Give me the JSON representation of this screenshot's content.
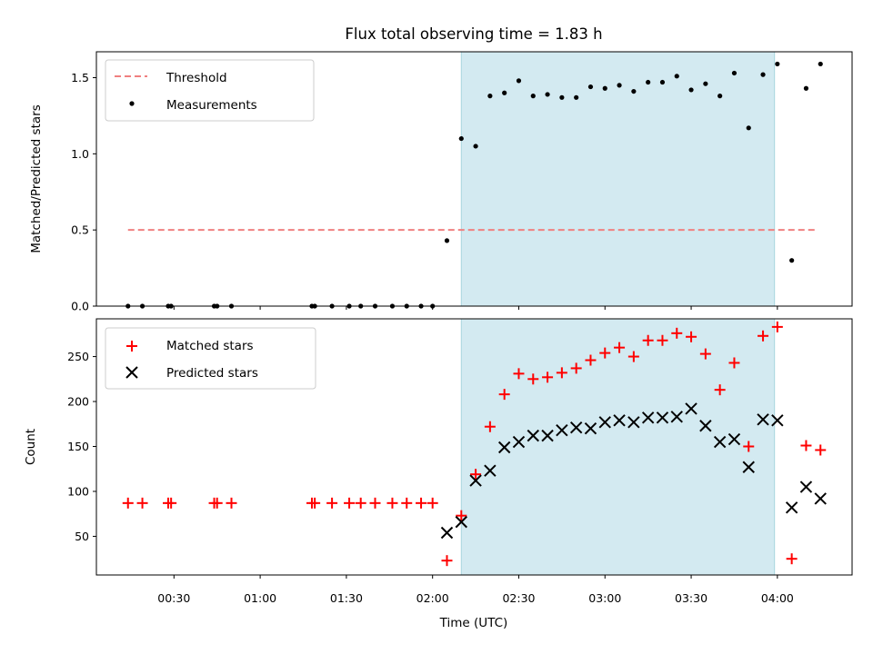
{
  "chart_data": [
    {
      "type": "scatter",
      "title": "Flux total observing time = 1.83 h",
      "xlabel": "",
      "ylabel": "Matched/Predicted stars",
      "xlim": [
        "00:03",
        "04:26"
      ],
      "ylim": [
        0,
        1.67
      ],
      "yticks": [
        0.0,
        0.5,
        1.0,
        1.5
      ],
      "ytick_labels": [
        "0.0",
        "0.5",
        "1.0",
        "1.5"
      ],
      "grid": false,
      "legend_position": "top-left",
      "shaded_span": [
        "02:10",
        "03:59"
      ],
      "shade_color": "#d3eaf1",
      "series": [
        {
          "name": "Threshold",
          "style": "dashed-line",
          "color": "#f08080",
          "points": [
            [
              "00:14",
              0.5
            ],
            [
              "04:14",
              0.5
            ]
          ]
        },
        {
          "name": "Measurements",
          "style": "dot",
          "color": "#000000",
          "points": [
            [
              "00:14",
              0.0
            ],
            [
              "00:19",
              0.0
            ],
            [
              "00:28",
              0.0
            ],
            [
              "00:29",
              0.0
            ],
            [
              "00:44",
              0.0
            ],
            [
              "00:45",
              0.0
            ],
            [
              "00:50",
              0.0
            ],
            [
              "01:18",
              0.0
            ],
            [
              "01:19",
              0.0
            ],
            [
              "01:25",
              0.0
            ],
            [
              "01:31",
              0.0
            ],
            [
              "01:35",
              0.0
            ],
            [
              "01:40",
              0.0
            ],
            [
              "01:46",
              0.0
            ],
            [
              "01:51",
              0.0
            ],
            [
              "01:56",
              0.0
            ],
            [
              "02:00",
              0.0
            ],
            [
              "02:05",
              0.43
            ],
            [
              "02:10",
              1.1
            ],
            [
              "02:15",
              1.05
            ],
            [
              "02:20",
              1.38
            ],
            [
              "02:25",
              1.4
            ],
            [
              "02:30",
              1.48
            ],
            [
              "02:35",
              1.38
            ],
            [
              "02:40",
              1.39
            ],
            [
              "02:45",
              1.37
            ],
            [
              "02:50",
              1.37
            ],
            [
              "02:55",
              1.44
            ],
            [
              "03:00",
              1.43
            ],
            [
              "03:05",
              1.45
            ],
            [
              "03:10",
              1.41
            ],
            [
              "03:15",
              1.47
            ],
            [
              "03:20",
              1.47
            ],
            [
              "03:25",
              1.51
            ],
            [
              "03:30",
              1.42
            ],
            [
              "03:35",
              1.46
            ],
            [
              "03:40",
              1.38
            ],
            [
              "03:45",
              1.53
            ],
            [
              "03:50",
              1.17
            ],
            [
              "03:55",
              1.52
            ],
            [
              "04:00",
              1.59
            ],
            [
              "04:05",
              0.3
            ],
            [
              "04:10",
              1.43
            ],
            [
              "04:15",
              1.59
            ]
          ]
        }
      ]
    },
    {
      "type": "scatter",
      "title": "",
      "xlabel": "Time (UTC)",
      "ylabel": "Count",
      "xlim": [
        "00:03",
        "04:26"
      ],
      "ylim": [
        7,
        292
      ],
      "yticks": [
        50,
        100,
        150,
        200,
        250
      ],
      "ytick_labels": [
        "50",
        "100",
        "150",
        "200",
        "250"
      ],
      "xticks": [
        "00:30",
        "01:00",
        "01:30",
        "02:00",
        "02:30",
        "03:00",
        "03:30",
        "04:00"
      ],
      "xtick_labels": [
        "00:30",
        "01:00",
        "01:30",
        "02:00",
        "02:30",
        "03:00",
        "03:30",
        "04:00"
      ],
      "grid": false,
      "legend_position": "top-left",
      "shaded_span": [
        "02:10",
        "03:59"
      ],
      "shade_color": "#d3eaf1",
      "series": [
        {
          "name": "Matched stars",
          "style": "plus",
          "color": "#ff0000",
          "points": [
            [
              "00:14",
              87
            ],
            [
              "00:19",
              87
            ],
            [
              "00:28",
              87
            ],
            [
              "00:29",
              87
            ],
            [
              "00:44",
              87
            ],
            [
              "00:45",
              87
            ],
            [
              "00:50",
              87
            ],
            [
              "01:18",
              87
            ],
            [
              "01:19",
              87
            ],
            [
              "01:25",
              87
            ],
            [
              "01:31",
              87
            ],
            [
              "01:35",
              87
            ],
            [
              "01:40",
              87
            ],
            [
              "01:46",
              87
            ],
            [
              "01:51",
              87
            ],
            [
              "01:56",
              87
            ],
            [
              "02:00",
              87
            ],
            [
              "02:05",
              23
            ],
            [
              "02:10",
              73
            ],
            [
              "02:15",
              119
            ],
            [
              "02:20",
              172
            ],
            [
              "02:25",
              208
            ],
            [
              "02:30",
              231
            ],
            [
              "02:35",
              225
            ],
            [
              "02:40",
              227
            ],
            [
              "02:45",
              232
            ],
            [
              "02:50",
              237
            ],
            [
              "02:55",
              246
            ],
            [
              "03:00",
              254
            ],
            [
              "03:05",
              260
            ],
            [
              "03:10",
              250
            ],
            [
              "03:15",
              268
            ],
            [
              "03:20",
              268
            ],
            [
              "03:25",
              276
            ],
            [
              "03:30",
              272
            ],
            [
              "03:35",
              253
            ],
            [
              "03:40",
              213
            ],
            [
              "03:45",
              243
            ],
            [
              "03:50",
              150
            ],
            [
              "03:55",
              273
            ],
            [
              "04:00",
              283
            ],
            [
              "04:05",
              25
            ],
            [
              "04:10",
              151
            ],
            [
              "04:15",
              146
            ]
          ]
        },
        {
          "name": "Predicted stars",
          "style": "x",
          "color": "#000000",
          "points": [
            [
              "02:05",
              54
            ],
            [
              "02:10",
              66
            ],
            [
              "02:15",
              112
            ],
            [
              "02:20",
              123
            ],
            [
              "02:25",
              149
            ],
            [
              "02:30",
              155
            ],
            [
              "02:35",
              162
            ],
            [
              "02:40",
              162
            ],
            [
              "02:45",
              168
            ],
            [
              "02:50",
              171
            ],
            [
              "02:55",
              170
            ],
            [
              "03:00",
              177
            ],
            [
              "03:05",
              179
            ],
            [
              "03:10",
              177
            ],
            [
              "03:15",
              182
            ],
            [
              "03:20",
              182
            ],
            [
              "03:25",
              183
            ],
            [
              "03:30",
              192
            ],
            [
              "03:35",
              173
            ],
            [
              "03:40",
              155
            ],
            [
              "03:45",
              158
            ],
            [
              "03:50",
              127
            ],
            [
              "03:55",
              180
            ],
            [
              "04:00",
              179
            ],
            [
              "04:05",
              82
            ],
            [
              "04:10",
              105
            ],
            [
              "04:15",
              92
            ]
          ]
        }
      ]
    }
  ]
}
